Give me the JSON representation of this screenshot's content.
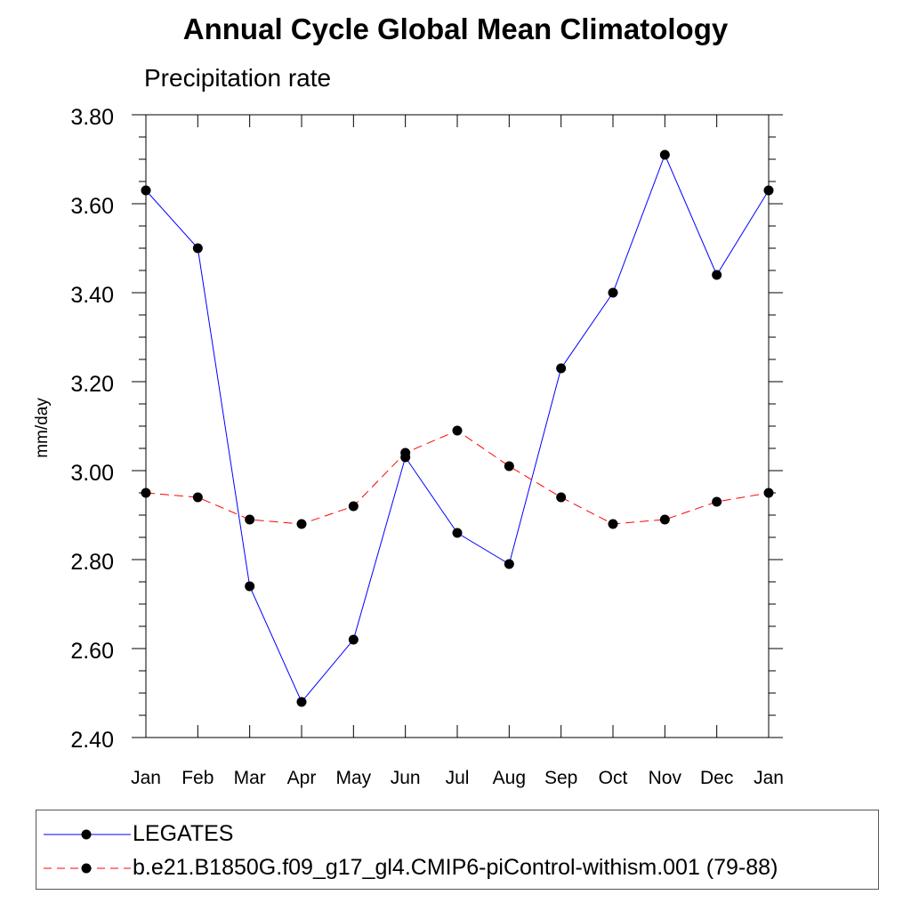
{
  "chart_data": {
    "type": "line",
    "title": "Annual Cycle Global Mean Climatology",
    "subtitle": "Precipitation rate",
    "xlabel": "",
    "ylabel": "mm/day",
    "categories": [
      "Jan",
      "Feb",
      "Mar",
      "Apr",
      "May",
      "Jun",
      "Jul",
      "Aug",
      "Sep",
      "Oct",
      "Nov",
      "Dec",
      "Jan"
    ],
    "ylim": [
      2.4,
      3.8
    ],
    "yticks": [
      "2.40",
      "2.60",
      "2.80",
      "3.00",
      "3.20",
      "3.40",
      "3.60",
      "3.80"
    ],
    "grid": false,
    "legend_placement": "bottom",
    "series": [
      {
        "name": "LEGATES",
        "color": "#0000ff",
        "line_style": "solid",
        "values": [
          3.63,
          3.5,
          2.74,
          2.48,
          2.62,
          3.03,
          2.86,
          2.79,
          3.23,
          3.4,
          3.71,
          3.44,
          3.63
        ]
      },
      {
        "name": "b.e21.B1850G.f09_g17_gl4.CMIP6-piControl-withism.001 (79-88)",
        "color": "#ff0000",
        "line_style": "dashed",
        "values": [
          2.95,
          2.94,
          2.89,
          2.88,
          2.92,
          3.04,
          3.09,
          3.01,
          2.94,
          2.88,
          2.89,
          2.93,
          2.95
        ]
      }
    ]
  }
}
